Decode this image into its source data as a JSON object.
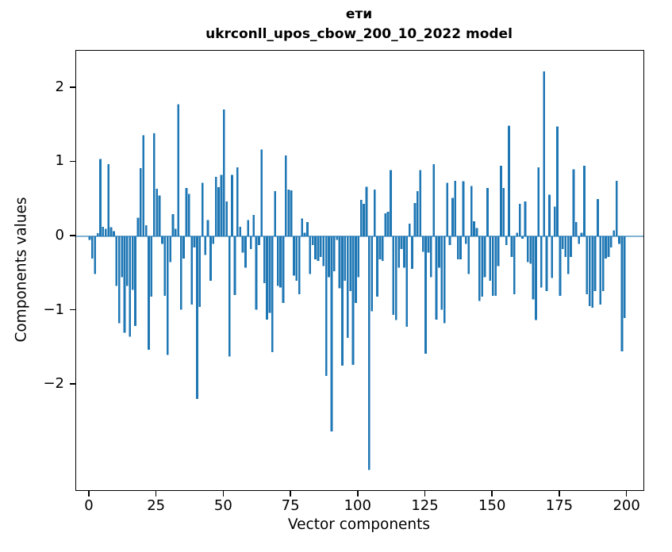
{
  "figure": {
    "background": "#ffffff"
  },
  "chart_data": {
    "type": "bar",
    "title": "ети",
    "subtitle": "ukrconll_upos_cbow_200_10_2022 model",
    "xlabel": "Vector components",
    "ylabel": "Components values",
    "bar_color": "#1f77b4",
    "axis_color": "#000000",
    "zero_line": true,
    "grid": false,
    "legend": null,
    "xlim": [
      -5,
      206
    ],
    "ylim": [
      -3.42,
      2.5
    ],
    "x_ticks": [
      {
        "v": 0,
        "label": "0"
      },
      {
        "v": 25,
        "label": "25"
      },
      {
        "v": 50,
        "label": "50"
      },
      {
        "v": 75,
        "label": "75"
      },
      {
        "v": 100,
        "label": "100"
      },
      {
        "v": 125,
        "label": "125"
      },
      {
        "v": 150,
        "label": "150"
      },
      {
        "v": 175,
        "label": "175"
      },
      {
        "v": 200,
        "label": "200"
      }
    ],
    "y_ticks": [
      {
        "v": 2,
        "label": "2"
      },
      {
        "v": 1,
        "label": "1"
      },
      {
        "v": 0,
        "label": "0"
      },
      {
        "v": -1,
        "label": "−1"
      },
      {
        "v": -2,
        "label": "−2"
      }
    ],
    "values": [
      -0.05,
      -0.3,
      -0.51,
      0.04,
      1.04,
      0.13,
      0.1,
      0.97,
      0.12,
      0.07,
      -0.67,
      -1.17,
      -0.55,
      -1.3,
      -0.67,
      -1.35,
      -0.72,
      -1.21,
      0.25,
      0.92,
      1.36,
      0.15,
      -1.53,
      -0.81,
      1.39,
      0.64,
      0.55,
      -0.1,
      -0.8,
      -1.6,
      -0.35,
      0.3,
      0.1,
      1.78,
      -0.99,
      -0.3,
      0.65,
      0.57,
      -0.92,
      -0.15,
      -2.19,
      -0.95,
      0.72,
      -0.25,
      0.22,
      -0.6,
      -0.1,
      0.8,
      0.66,
      0.83,
      1.71,
      0.47,
      -1.62,
      0.83,
      -0.79,
      0.93,
      0.13,
      -0.22,
      -0.42,
      0.22,
      -0.17,
      0.29,
      -0.99,
      -0.12,
      1.17,
      -0.63,
      -1.12,
      -1.03,
      -1.56,
      0.61,
      -0.67,
      -0.69,
      -0.9,
      1.09,
      0.63,
      0.62,
      -0.53,
      -0.6,
      -0.78,
      0.24,
      0.05,
      0.19,
      -0.51,
      -0.12,
      -0.31,
      -0.33,
      -0.28,
      -0.4,
      -1.88,
      -0.55,
      -2.63,
      -0.47,
      -0.05,
      -0.7,
      -1.74,
      -0.6,
      -1.37,
      -0.74,
      -1.73,
      -0.9,
      -0.55,
      0.49,
      0.44,
      0.67,
      -3.15,
      -1.01,
      0.63,
      -0.81,
      -0.31,
      -0.33,
      0.31,
      0.33,
      0.89,
      -1.06,
      -1.13,
      -0.42,
      -0.17,
      -0.42,
      -1.22,
      0.17,
      -0.44,
      0.45,
      0.61,
      0.89,
      -0.21,
      -1.58,
      -0.22,
      -0.55,
      0.97,
      -1.12,
      -0.42,
      -0.99,
      -1.17,
      0.72,
      -0.12,
      0.52,
      0.75,
      -0.31,
      -0.31,
      0.74,
      -0.1,
      -0.51,
      0.68,
      0.2,
      0.11,
      -0.87,
      -0.81,
      -0.55,
      0.65,
      -0.6,
      -0.8,
      -0.8,
      -0.4,
      0.95,
      0.65,
      -0.12,
      1.49,
      -0.28,
      -0.78,
      0.05,
      0.44,
      -0.03,
      0.47,
      -0.35,
      -0.37,
      -0.85,
      -1.13,
      0.93,
      -0.69,
      2.22,
      -0.74,
      0.56,
      -0.56,
      0.4,
      1.48,
      -0.8,
      -0.17,
      -0.28,
      -0.51,
      -0.28,
      0.9,
      0.19,
      -0.1,
      0.05,
      0.95,
      -0.78,
      -0.94,
      -0.96,
      -0.74,
      0.5,
      -0.92,
      -0.74,
      -0.3,
      -0.28,
      -0.15,
      0.08,
      0.75,
      -0.1,
      -1.55,
      -1.1
    ]
  }
}
